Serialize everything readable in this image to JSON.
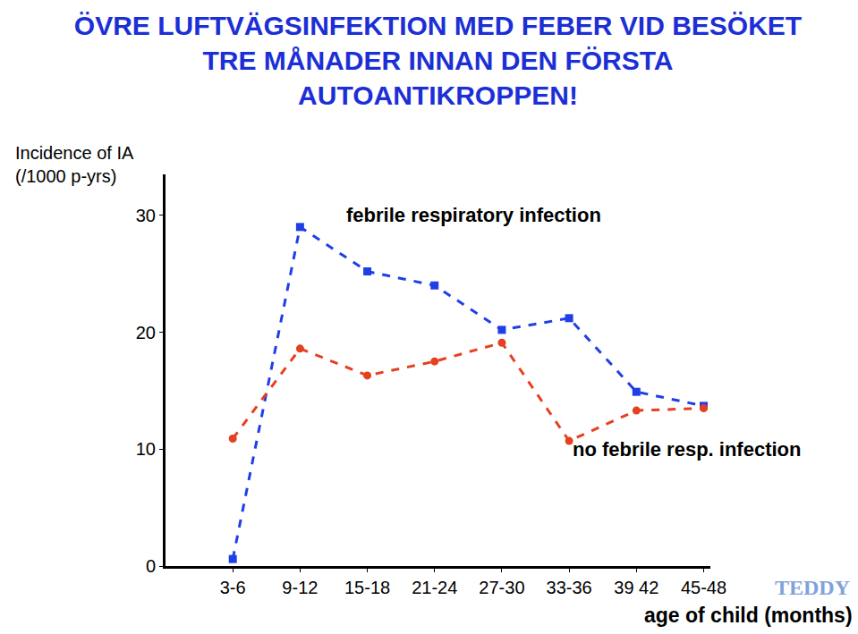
{
  "chart_data": {
    "type": "line",
    "title": [
      "ÖVRE LUFTVÄGSINFEKTION MED FEBER VID BESÖKET",
      "TRE MÅNADER INNAN DEN FÖRSTA",
      "AUTOANTIKROPPEN!"
    ],
    "ylabel": [
      "Incidence of IA",
      "(/1000 p-yrs)"
    ],
    "xlabel": "age of child (months)",
    "categories": [
      "3-6",
      "9-12",
      "15-18",
      "21-24",
      "27-30",
      "33-36",
      "39 42",
      "45-48"
    ],
    "series": [
      {
        "name": "febrile respiratory infection",
        "color": "#1f3fe6",
        "marker": "square",
        "line_style": "dash",
        "values": [
          0.6,
          29.0,
          25.2,
          24.0,
          20.2,
          21.2,
          14.9,
          13.7
        ]
      },
      {
        "name": "no febrile resp. infection",
        "color": "#e5401f",
        "marker": "circle",
        "line_style": "dash",
        "values": [
          10.9,
          18.6,
          16.3,
          17.5,
          19.1,
          10.7,
          13.3,
          13.5
        ]
      }
    ],
    "ylim": [
      0,
      33.5
    ],
    "yticks": [
      0,
      10,
      20,
      30
    ],
    "grid": false,
    "annotations": [
      "TEDDY"
    ]
  }
}
